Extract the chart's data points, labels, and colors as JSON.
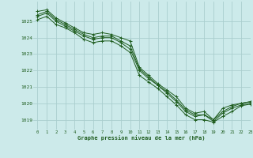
{
  "title": "Graphe pression niveau de la mer (hPa)",
  "background_color": "#cceaea",
  "grid_color": "#aacece",
  "line_color": "#1e5c1e",
  "xlim": [
    -0.5,
    23
  ],
  "ylim": [
    1018.4,
    1026.2
  ],
  "yticks": [
    1019,
    1020,
    1021,
    1022,
    1023,
    1024,
    1025
  ],
  "xticks": [
    0,
    1,
    2,
    3,
    4,
    5,
    6,
    7,
    8,
    9,
    10,
    11,
    12,
    13,
    14,
    15,
    16,
    17,
    18,
    19,
    20,
    21,
    22,
    23
  ],
  "series": [
    [
      1025.6,
      1025.7,
      1025.2,
      1024.9,
      1024.6,
      1024.3,
      1024.2,
      1024.3,
      1024.2,
      1024.0,
      1023.8,
      1022.2,
      1021.7,
      1021.2,
      1020.8,
      1020.4,
      1019.7,
      1019.4,
      1019.5,
      1019.0,
      1019.7,
      1019.9,
      1020.0,
      1020.1
    ],
    [
      1025.3,
      1025.5,
      1025.0,
      1024.7,
      1024.4,
      1024.1,
      1023.9,
      1024.0,
      1024.0,
      1023.7,
      1023.3,
      1022.0,
      1021.5,
      1021.1,
      1020.6,
      1020.1,
      1019.5,
      1019.2,
      1019.3,
      1018.9,
      1019.4,
      1019.7,
      1019.9,
      1020.0
    ],
    [
      1025.4,
      1025.6,
      1025.1,
      1024.8,
      1024.5,
      1024.2,
      1024.0,
      1024.1,
      1024.1,
      1023.8,
      1023.5,
      1022.1,
      1021.6,
      1021.1,
      1020.7,
      1020.2,
      1019.6,
      1019.3,
      1019.3,
      1019.0,
      1019.5,
      1019.8,
      1020.0,
      1020.1
    ],
    [
      1025.1,
      1025.3,
      1024.8,
      1024.6,
      1024.3,
      1023.9,
      1023.7,
      1023.8,
      1023.8,
      1023.5,
      1023.1,
      1021.7,
      1021.3,
      1020.9,
      1020.4,
      1019.9,
      1019.3,
      1019.0,
      1019.0,
      1018.85,
      1019.2,
      1019.5,
      1019.85,
      1019.95
    ]
  ],
  "figsize": [
    3.2,
    2.0
  ],
  "dpi": 100
}
